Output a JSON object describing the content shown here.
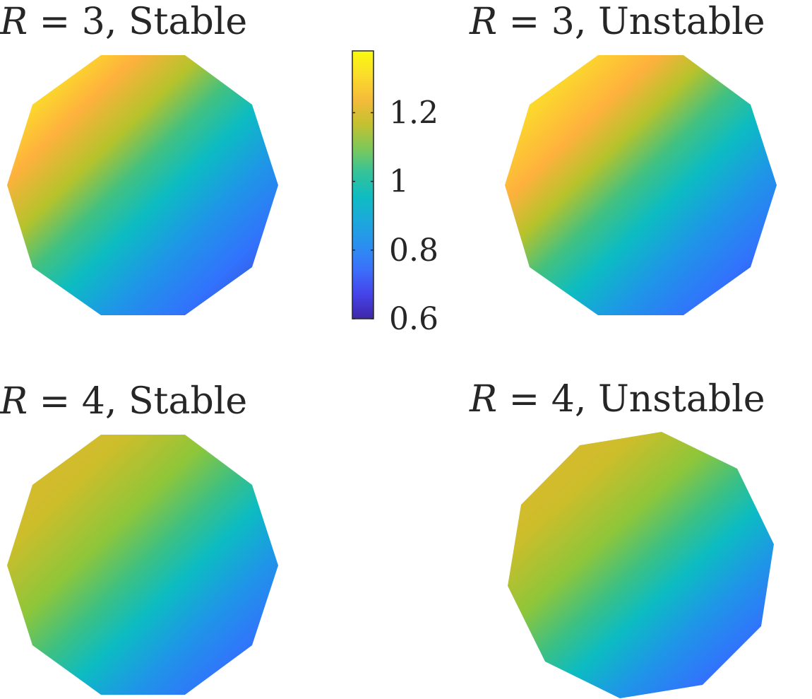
{
  "panels": [
    {
      "id": "r3-stable",
      "var": "R",
      "eq": " = 3, ",
      "status": "Stable",
      "gradient": {
        "stops": [
          {
            "offset": 0.0,
            "color": "#f9fb0e"
          },
          {
            "offset": 0.14,
            "color": "#fbd92c"
          },
          {
            "offset": 0.24,
            "color": "#feb13d"
          },
          {
            "offset": 0.36,
            "color": "#b5c32b"
          },
          {
            "offset": 0.46,
            "color": "#42c180"
          },
          {
            "offset": 0.56,
            "color": "#0cbcc2"
          },
          {
            "offset": 0.68,
            "color": "#1e97e6"
          },
          {
            "offset": 0.82,
            "color": "#3272fd"
          },
          {
            "offset": 1.0,
            "color": "#3d3ab6"
          }
        ]
      }
    },
    {
      "id": "r3-unstable",
      "var": "R",
      "eq": " = 3, ",
      "status": "Unstable",
      "gradient": {
        "stops": [
          {
            "offset": 0.0,
            "color": "#f9fb0e"
          },
          {
            "offset": 0.16,
            "color": "#fcd52e"
          },
          {
            "offset": 0.28,
            "color": "#feb13d"
          },
          {
            "offset": 0.38,
            "color": "#b5c32b"
          },
          {
            "offset": 0.48,
            "color": "#42c180"
          },
          {
            "offset": 0.58,
            "color": "#0cbcc2"
          },
          {
            "offset": 0.7,
            "color": "#1e97e6"
          },
          {
            "offset": 0.84,
            "color": "#3272fd"
          },
          {
            "offset": 1.0,
            "color": "#3d3ab6"
          }
        ]
      }
    },
    {
      "id": "r4-stable",
      "var": "R",
      "eq": " = 4, ",
      "status": "Stable",
      "gradient": {
        "stops": [
          {
            "offset": 0.0,
            "color": "#dfb830"
          },
          {
            "offset": 0.22,
            "color": "#cdbd2b"
          },
          {
            "offset": 0.38,
            "color": "#8ec63a"
          },
          {
            "offset": 0.5,
            "color": "#3cc083"
          },
          {
            "offset": 0.6,
            "color": "#0cbcc2"
          },
          {
            "offset": 0.72,
            "color": "#1e97e6"
          },
          {
            "offset": 0.86,
            "color": "#3272fd"
          },
          {
            "offset": 1.0,
            "color": "#3d3ab6"
          }
        ]
      }
    },
    {
      "id": "r4-unstable",
      "var": "R",
      "eq": " = 4, ",
      "status": "Unstable",
      "gradient": {
        "stops": [
          {
            "offset": 0.0,
            "color": "#dfb830"
          },
          {
            "offset": 0.22,
            "color": "#cdbd2b"
          },
          {
            "offset": 0.38,
            "color": "#8ec63a"
          },
          {
            "offset": 0.5,
            "color": "#3cc083"
          },
          {
            "offset": 0.6,
            "color": "#0cbcc2"
          },
          {
            "offset": 0.72,
            "color": "#1e97e6"
          },
          {
            "offset": 0.86,
            "color": "#3272fd"
          },
          {
            "offset": 1.0,
            "color": "#3d3ab6"
          }
        ]
      }
    }
  ],
  "colorbar": {
    "min": 0.6,
    "max": 1.38,
    "ticks": [
      {
        "value": 0.6,
        "label": "0.6"
      },
      {
        "value": 0.8,
        "label": "0.8"
      },
      {
        "value": 1.0,
        "label": "1"
      },
      {
        "value": 1.2,
        "label": "1.2"
      }
    ],
    "colormap": [
      "#3e26a8",
      "#4543e9",
      "#3c6ffb",
      "#2b8ff0",
      "#1ca8dc",
      "#0fbcc2",
      "#33c39a",
      "#7ec85a",
      "#c4c12f",
      "#f5bb3a",
      "#fbdc2a",
      "#f9fb0e"
    ]
  }
}
